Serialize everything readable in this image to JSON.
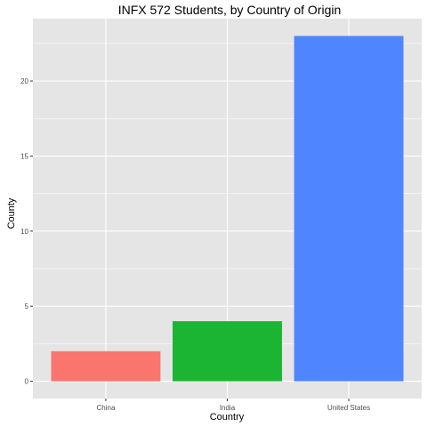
{
  "chart_data": {
    "type": "bar",
    "title": "INFX 572 Students, by Country of Origin",
    "xlabel": "Country",
    "ylabel": "County",
    "categories": [
      "China",
      "India",
      "United States"
    ],
    "values": [
      2,
      4,
      23
    ],
    "colors": [
      "#F8766D",
      "#1BB533",
      "#4F86FF"
    ],
    "ylim": [
      -1.15,
      24.15
    ],
    "yticks": [
      0,
      5,
      10,
      15,
      20
    ],
    "grid": true,
    "panel_background": "#E5E5E5",
    "gridline_color": "#FFFFFF",
    "legend": "none"
  }
}
